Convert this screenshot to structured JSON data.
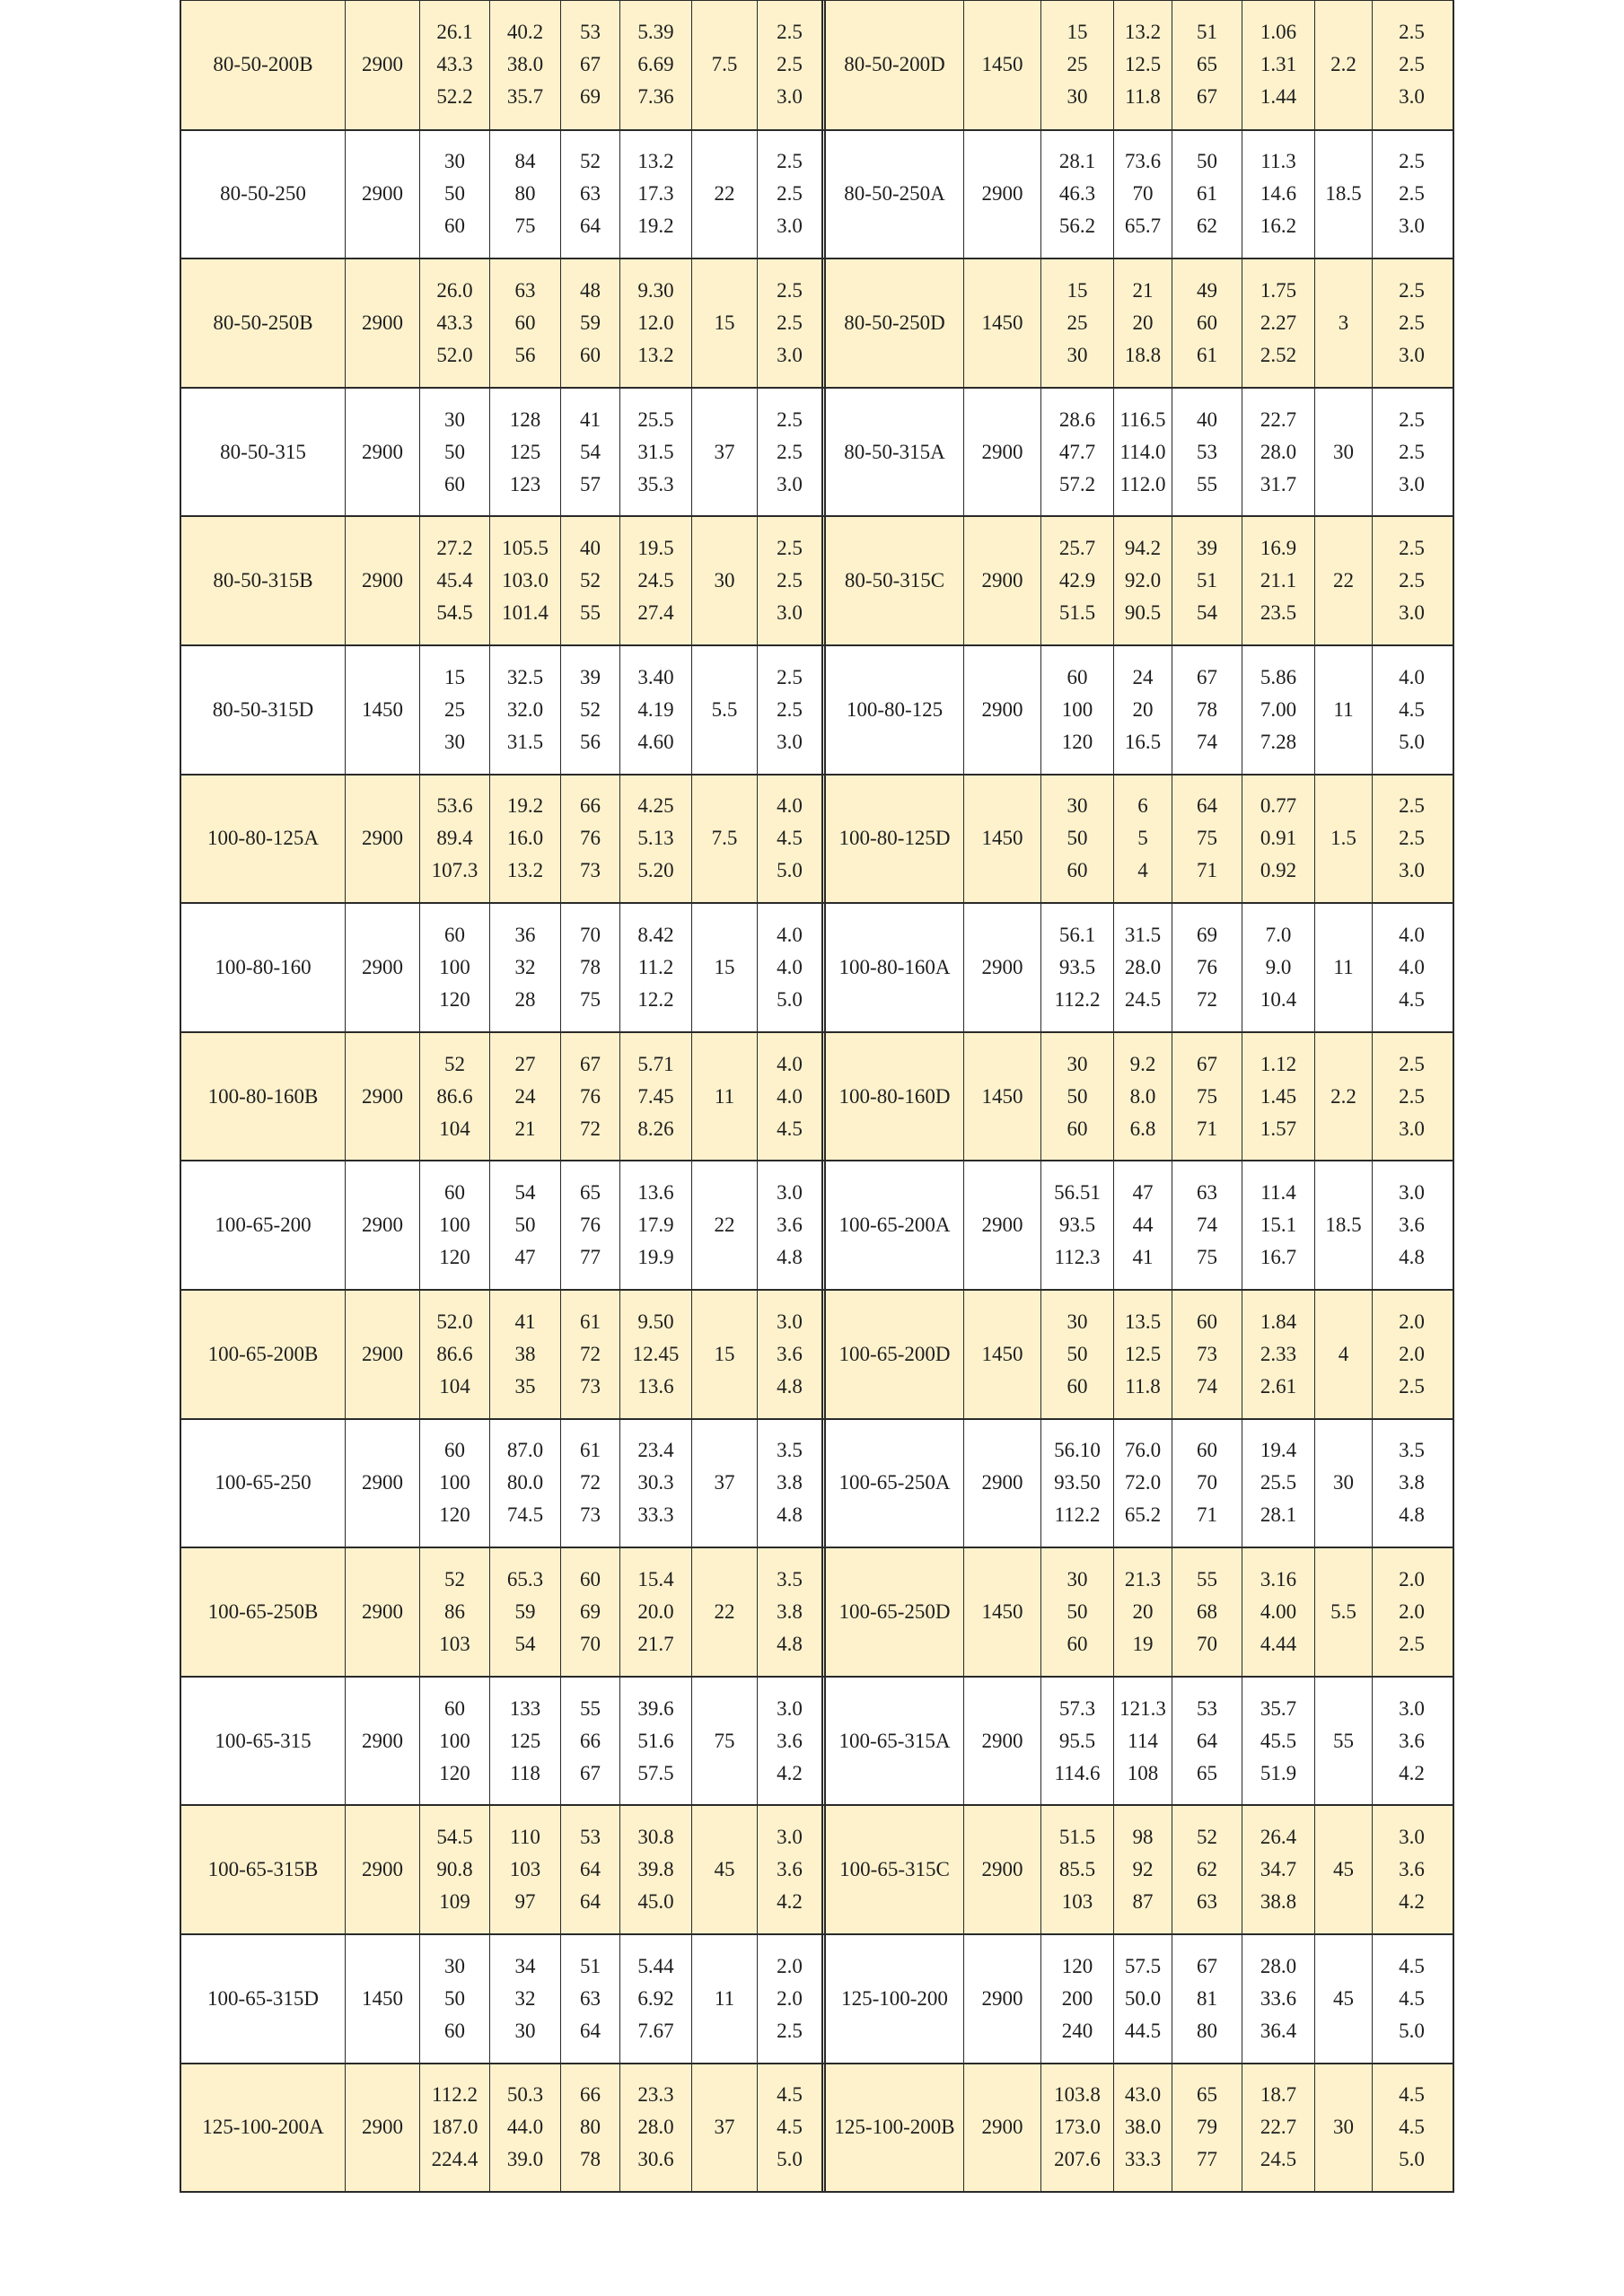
{
  "colors": {
    "shaded_row": "#fdf2cc",
    "border": "#2a2a2a"
  },
  "rows": [
    [
      {
        "model": "80-50-200B",
        "speed": "2900",
        "flow": [
          "26.1",
          "43.3",
          "52.2"
        ],
        "head": [
          "40.2",
          "38.0",
          "35.7"
        ],
        "eff": [
          "53",
          "67",
          "69"
        ],
        "shaft": [
          "5.39",
          "6.69",
          "7.36"
        ],
        "motor": "7.5",
        "npsh": [
          "2.5",
          "2.5",
          "3.0"
        ]
      },
      {
        "model": "80-50-200D",
        "speed": "1450",
        "flow": [
          "15",
          "25",
          "30"
        ],
        "head": [
          "13.2",
          "12.5",
          "11.8"
        ],
        "eff": [
          "51",
          "65",
          "67"
        ],
        "shaft": [
          "1.06",
          "1.31",
          "1.44"
        ],
        "motor": "2.2",
        "npsh": [
          "2.5",
          "2.5",
          "3.0"
        ]
      }
    ],
    [
      {
        "model": "80-50-250",
        "speed": "2900",
        "flow": [
          "30",
          "50",
          "60"
        ],
        "head": [
          "84",
          "80",
          "75"
        ],
        "eff": [
          "52",
          "63",
          "64"
        ],
        "shaft": [
          "13.2",
          "17.3",
          "19.2"
        ],
        "motor": "22",
        "npsh": [
          "2.5",
          "2.5",
          "3.0"
        ]
      },
      {
        "model": "80-50-250A",
        "speed": "2900",
        "flow": [
          "28.1",
          "46.3",
          "56.2"
        ],
        "head": [
          "73.6",
          "70",
          "65.7"
        ],
        "eff": [
          "50",
          "61",
          "62"
        ],
        "shaft": [
          "11.3",
          "14.6",
          "16.2"
        ],
        "motor": "18.5",
        "npsh": [
          "2.5",
          "2.5",
          "3.0"
        ]
      }
    ],
    [
      {
        "model": "80-50-250B",
        "speed": "2900",
        "flow": [
          "26.0",
          "43.3",
          "52.0"
        ],
        "head": [
          "63",
          "60",
          "56"
        ],
        "eff": [
          "48",
          "59",
          "60"
        ],
        "shaft": [
          "9.30",
          "12.0",
          "13.2"
        ],
        "motor": "15",
        "npsh": [
          "2.5",
          "2.5",
          "3.0"
        ]
      },
      {
        "model": "80-50-250D",
        "speed": "1450",
        "flow": [
          "15",
          "25",
          "30"
        ],
        "head": [
          "21",
          "20",
          "18.8"
        ],
        "eff": [
          "49",
          "60",
          "61"
        ],
        "shaft": [
          "1.75",
          "2.27",
          "2.52"
        ],
        "motor": "3",
        "npsh": [
          "2.5",
          "2.5",
          "3.0"
        ]
      }
    ],
    [
      {
        "model": "80-50-315",
        "speed": "2900",
        "flow": [
          "30",
          "50",
          "60"
        ],
        "head": [
          "128",
          "125",
          "123"
        ],
        "eff": [
          "41",
          "54",
          "57"
        ],
        "shaft": [
          "25.5",
          "31.5",
          "35.3"
        ],
        "motor": "37",
        "npsh": [
          "2.5",
          "2.5",
          "3.0"
        ]
      },
      {
        "model": "80-50-315A",
        "speed": "2900",
        "flow": [
          "28.6",
          "47.7",
          "57.2"
        ],
        "head": [
          "116.5",
          "114.0",
          "112.0"
        ],
        "eff": [
          "40",
          "53",
          "55"
        ],
        "shaft": [
          "22.7",
          "28.0",
          "31.7"
        ],
        "motor": "30",
        "npsh": [
          "2.5",
          "2.5",
          "3.0"
        ]
      }
    ],
    [
      {
        "model": "80-50-315B",
        "speed": "2900",
        "flow": [
          "27.2",
          "45.4",
          "54.5"
        ],
        "head": [
          "105.5",
          "103.0",
          "101.4"
        ],
        "eff": [
          "40",
          "52",
          "55"
        ],
        "shaft": [
          "19.5",
          "24.5",
          "27.4"
        ],
        "motor": "30",
        "npsh": [
          "2.5",
          "2.5",
          "3.0"
        ]
      },
      {
        "model": "80-50-315C",
        "speed": "2900",
        "flow": [
          "25.7",
          "42.9",
          "51.5"
        ],
        "head": [
          "94.2",
          "92.0",
          "90.5"
        ],
        "eff": [
          "39",
          "51",
          "54"
        ],
        "shaft": [
          "16.9",
          "21.1",
          "23.5"
        ],
        "motor": "22",
        "npsh": [
          "2.5",
          "2.5",
          "3.0"
        ]
      }
    ],
    [
      {
        "model": "80-50-315D",
        "speed": "1450",
        "flow": [
          "15",
          "25",
          "30"
        ],
        "head": [
          "32.5",
          "32.0",
          "31.5"
        ],
        "eff": [
          "39",
          "52",
          "56"
        ],
        "shaft": [
          "3.40",
          "4.19",
          "4.60"
        ],
        "motor": "5.5",
        "npsh": [
          "2.5",
          "2.5",
          "3.0"
        ]
      },
      {
        "model": "100-80-125",
        "speed": "2900",
        "flow": [
          "60",
          "100",
          "120"
        ],
        "head": [
          "24",
          "20",
          "16.5"
        ],
        "eff": [
          "67",
          "78",
          "74"
        ],
        "shaft": [
          "5.86",
          "7.00",
          "7.28"
        ],
        "motor": "11",
        "npsh": [
          "4.0",
          "4.5",
          "5.0"
        ]
      }
    ],
    [
      {
        "model": "100-80-125A",
        "speed": "2900",
        "flow": [
          "53.6",
          "89.4",
          "107.3"
        ],
        "head": [
          "19.2",
          "16.0",
          "13.2"
        ],
        "eff": [
          "66",
          "76",
          "73"
        ],
        "shaft": [
          "4.25",
          "5.13",
          "5.20"
        ],
        "motor": "7.5",
        "npsh": [
          "4.0",
          "4.5",
          "5.0"
        ]
      },
      {
        "model": "100-80-125D",
        "speed": "1450",
        "flow": [
          "30",
          "50",
          "60"
        ],
        "head": [
          "6",
          "5",
          "4"
        ],
        "eff": [
          "64",
          "75",
          "71"
        ],
        "shaft": [
          "0.77",
          "0.91",
          "0.92"
        ],
        "motor": "1.5",
        "npsh": [
          "2.5",
          "2.5",
          "3.0"
        ]
      }
    ],
    [
      {
        "model": "100-80-160",
        "speed": "2900",
        "flow": [
          "60",
          "100",
          "120"
        ],
        "head": [
          "36",
          "32",
          "28"
        ],
        "eff": [
          "70",
          "78",
          "75"
        ],
        "shaft": [
          "8.42",
          "11.2",
          "12.2"
        ],
        "motor": "15",
        "npsh": [
          "4.0",
          "4.0",
          "5.0"
        ]
      },
      {
        "model": "100-80-160A",
        "speed": "2900",
        "flow": [
          "56.1",
          "93.5",
          "112.2"
        ],
        "head": [
          "31.5",
          "28.0",
          "24.5"
        ],
        "eff": [
          "69",
          "76",
          "72"
        ],
        "shaft": [
          "7.0",
          "9.0",
          "10.4"
        ],
        "motor": "11",
        "npsh": [
          "4.0",
          "4.0",
          "4.5"
        ]
      }
    ],
    [
      {
        "model": "100-80-160B",
        "speed": "2900",
        "flow": [
          "52",
          "86.6",
          "104"
        ],
        "head": [
          "27",
          "24",
          "21"
        ],
        "eff": [
          "67",
          "76",
          "72"
        ],
        "shaft": [
          "5.71",
          "7.45",
          "8.26"
        ],
        "motor": "11",
        "npsh": [
          "4.0",
          "4.0",
          "4.5"
        ]
      },
      {
        "model": "100-80-160D",
        "speed": "1450",
        "flow": [
          "30",
          "50",
          "60"
        ],
        "head": [
          "9.2",
          "8.0",
          "6.8"
        ],
        "eff": [
          "67",
          "75",
          "71"
        ],
        "shaft": [
          "1.12",
          "1.45",
          "1.57"
        ],
        "motor": "2.2",
        "npsh": [
          "2.5",
          "2.5",
          "3.0"
        ]
      }
    ],
    [
      {
        "model": "100-65-200",
        "speed": "2900",
        "flow": [
          "60",
          "100",
          "120"
        ],
        "head": [
          "54",
          "50",
          "47"
        ],
        "eff": [
          "65",
          "76",
          "77"
        ],
        "shaft": [
          "13.6",
          "17.9",
          "19.9"
        ],
        "motor": "22",
        "npsh": [
          "3.0",
          "3.6",
          "4.8"
        ]
      },
      {
        "model": "100-65-200A",
        "speed": "2900",
        "flow": [
          "56.51",
          "93.5",
          "112.3"
        ],
        "head": [
          "47",
          "44",
          "41"
        ],
        "eff": [
          "63",
          "74",
          "75"
        ],
        "shaft": [
          "11.4",
          "15.1",
          "16.7"
        ],
        "motor": "18.5",
        "npsh": [
          "3.0",
          "3.6",
          "4.8"
        ]
      }
    ],
    [
      {
        "model": "100-65-200B",
        "speed": "2900",
        "flow": [
          "52.0",
          "86.6",
          "104"
        ],
        "head": [
          "41",
          "38",
          "35"
        ],
        "eff": [
          "61",
          "72",
          "73"
        ],
        "shaft": [
          "9.50",
          "12.45",
          "13.6"
        ],
        "motor": "15",
        "npsh": [
          "3.0",
          "3.6",
          "4.8"
        ]
      },
      {
        "model": "100-65-200D",
        "speed": "1450",
        "flow": [
          "30",
          "50",
          "60"
        ],
        "head": [
          "13.5",
          "12.5",
          "11.8"
        ],
        "eff": [
          "60",
          "73",
          "74"
        ],
        "shaft": [
          "1.84",
          "2.33",
          "2.61"
        ],
        "motor": "4",
        "npsh": [
          "2.0",
          "2.0",
          "2.5"
        ]
      }
    ],
    [
      {
        "model": "100-65-250",
        "speed": "2900",
        "flow": [
          "60",
          "100",
          "120"
        ],
        "head": [
          "87.0",
          "80.0",
          "74.5"
        ],
        "eff": [
          "61",
          "72",
          "73"
        ],
        "shaft": [
          "23.4",
          "30.3",
          "33.3"
        ],
        "motor": "37",
        "npsh": [
          "3.5",
          "3.8",
          "4.8"
        ]
      },
      {
        "model": "100-65-250A",
        "speed": "2900",
        "flow": [
          "56.10",
          "93.50",
          "112.2"
        ],
        "head": [
          "76.0",
          "72.0",
          "65.2"
        ],
        "eff": [
          "60",
          "70",
          "71"
        ],
        "shaft": [
          "19.4",
          "25.5",
          "28.1"
        ],
        "motor": "30",
        "npsh": [
          "3.5",
          "3.8",
          "4.8"
        ]
      }
    ],
    [
      {
        "model": "100-65-250B",
        "speed": "2900",
        "flow": [
          "52",
          "86",
          "103"
        ],
        "head": [
          "65.3",
          "59",
          "54"
        ],
        "eff": [
          "60",
          "69",
          "70"
        ],
        "shaft": [
          "15.4",
          "20.0",
          "21.7"
        ],
        "motor": "22",
        "npsh": [
          "3.5",
          "3.8",
          "4.8"
        ]
      },
      {
        "model": "100-65-250D",
        "speed": "1450",
        "flow": [
          "30",
          "50",
          "60"
        ],
        "head": [
          "21.3",
          "20",
          "19"
        ],
        "eff": [
          "55",
          "68",
          "70"
        ],
        "shaft": [
          "3.16",
          "4.00",
          "4.44"
        ],
        "motor": "5.5",
        "npsh": [
          "2.0",
          "2.0",
          "2.5"
        ]
      }
    ],
    [
      {
        "model": "100-65-315",
        "speed": "2900",
        "flow": [
          "60",
          "100",
          "120"
        ],
        "head": [
          "133",
          "125",
          "118"
        ],
        "eff": [
          "55",
          "66",
          "67"
        ],
        "shaft": [
          "39.6",
          "51.6",
          "57.5"
        ],
        "motor": "75",
        "npsh": [
          "3.0",
          "3.6",
          "4.2"
        ]
      },
      {
        "model": "100-65-315A",
        "speed": "2900",
        "flow": [
          "57.3",
          "95.5",
          "114.6"
        ],
        "head": [
          "121.3",
          "114",
          "108"
        ],
        "eff": [
          "53",
          "64",
          "65"
        ],
        "shaft": [
          "35.7",
          "45.5",
          "51.9"
        ],
        "motor": "55",
        "npsh": [
          "3.0",
          "3.6",
          "4.2"
        ]
      }
    ],
    [
      {
        "model": "100-65-315B",
        "speed": "2900",
        "flow": [
          "54.5",
          "90.8",
          "109"
        ],
        "head": [
          "110",
          "103",
          "97"
        ],
        "eff": [
          "53",
          "64",
          "64"
        ],
        "shaft": [
          "30.8",
          "39.8",
          "45.0"
        ],
        "motor": "45",
        "npsh": [
          "3.0",
          "3.6",
          "4.2"
        ]
      },
      {
        "model": "100-65-315C",
        "speed": "2900",
        "flow": [
          "51.5",
          "85.5",
          "103"
        ],
        "head": [
          "98",
          "92",
          "87"
        ],
        "eff": [
          "52",
          "62",
          "63"
        ],
        "shaft": [
          "26.4",
          "34.7",
          "38.8"
        ],
        "motor": "45",
        "npsh": [
          "3.0",
          "3.6",
          "4.2"
        ]
      }
    ],
    [
      {
        "model": "100-65-315D",
        "speed": "1450",
        "flow": [
          "30",
          "50",
          "60"
        ],
        "head": [
          "34",
          "32",
          "30"
        ],
        "eff": [
          "51",
          "63",
          "64"
        ],
        "shaft": [
          "5.44",
          "6.92",
          "7.67"
        ],
        "motor": "11",
        "npsh": [
          "2.0",
          "2.0",
          "2.5"
        ]
      },
      {
        "model": "125-100-200",
        "speed": "2900",
        "flow": [
          "120",
          "200",
          "240"
        ],
        "head": [
          "57.5",
          "50.0",
          "44.5"
        ],
        "eff": [
          "67",
          "81",
          "80"
        ],
        "shaft": [
          "28.0",
          "33.6",
          "36.4"
        ],
        "motor": "45",
        "npsh": [
          "4.5",
          "4.5",
          "5.0"
        ]
      }
    ],
    [
      {
        "model": "125-100-200A",
        "speed": "2900",
        "flow": [
          "112.2",
          "187.0",
          "224.4"
        ],
        "head": [
          "50.3",
          "44.0",
          "39.0"
        ],
        "eff": [
          "66",
          "80",
          "78"
        ],
        "shaft": [
          "23.3",
          "28.0",
          "30.6"
        ],
        "motor": "37",
        "npsh": [
          "4.5",
          "4.5",
          "5.0"
        ]
      },
      {
        "model": "125-100-200B",
        "speed": "2900",
        "flow": [
          "103.8",
          "173.0",
          "207.6"
        ],
        "head": [
          "43.0",
          "38.0",
          "33.3"
        ],
        "eff": [
          "65",
          "79",
          "77"
        ],
        "shaft": [
          "18.7",
          "22.7",
          "24.5"
        ],
        "motor": "30",
        "npsh": [
          "4.5",
          "4.5",
          "5.0"
        ]
      }
    ]
  ]
}
